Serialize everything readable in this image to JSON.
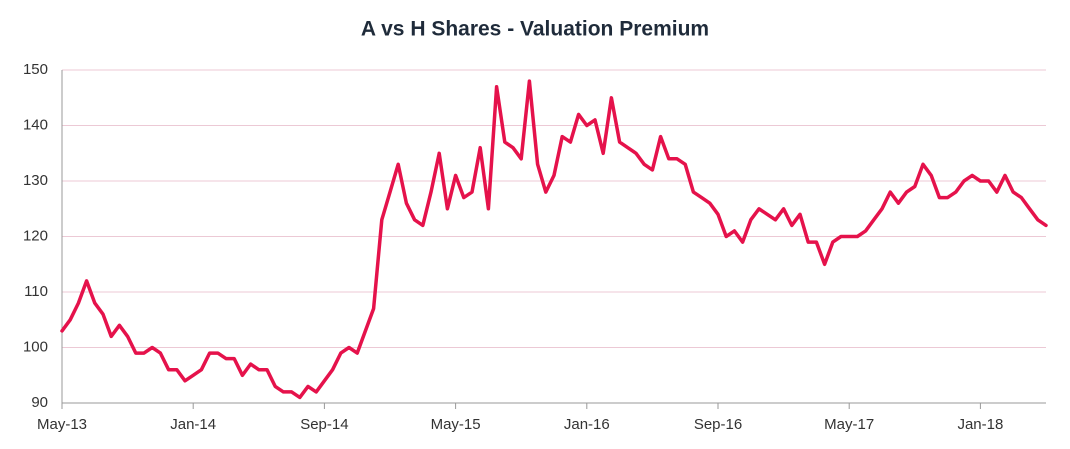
{
  "chart_data": {
    "type": "line",
    "title": "A vs H Shares - Valuation Premium",
    "categories": [
      "May-13",
      null,
      null,
      null,
      null,
      null,
      null,
      null,
      null,
      null,
      null,
      null,
      null,
      null,
      null,
      null,
      "Jan-14",
      null,
      null,
      null,
      null,
      null,
      null,
      null,
      null,
      null,
      null,
      null,
      null,
      null,
      null,
      null,
      "Sep-14",
      null,
      null,
      null,
      null,
      null,
      null,
      null,
      null,
      null,
      null,
      null,
      null,
      null,
      null,
      null,
      "May-15",
      null,
      null,
      null,
      null,
      null,
      null,
      null,
      null,
      null,
      null,
      null,
      null,
      null,
      null,
      null,
      "Jan-16",
      null,
      null,
      null,
      null,
      null,
      null,
      null,
      null,
      null,
      null,
      null,
      null,
      null,
      null,
      null,
      "Sep-16",
      null,
      null,
      null,
      null,
      null,
      null,
      null,
      null,
      null,
      null,
      null,
      null,
      null,
      null,
      null,
      "May-17",
      null,
      null,
      null,
      null,
      null,
      null,
      null,
      null,
      null,
      null,
      null,
      null,
      null,
      null,
      null,
      "Jan-18",
      null,
      null,
      null,
      null,
      null,
      null,
      null,
      null
    ],
    "series": [
      {
        "color": "#e5124b",
        "values": [
          103,
          105,
          108,
          112,
          108,
          106,
          102,
          104,
          102,
          99,
          99,
          100,
          99,
          96,
          96,
          94,
          95,
          96,
          99,
          99,
          98,
          98,
          95,
          97,
          96,
          96,
          93,
          92,
          92,
          91,
          93,
          92,
          94,
          96,
          99,
          100,
          99,
          103,
          107,
          123,
          128,
          133,
          126,
          123,
          122,
          128,
          135,
          125,
          131,
          127,
          128,
          136,
          125,
          147,
          137,
          136,
          134,
          148,
          133,
          128,
          131,
          138,
          137,
          142,
          140,
          141,
          135,
          145,
          137,
          136,
          135,
          133,
          132,
          138,
          134,
          134,
          133,
          128,
          127,
          126,
          124,
          120,
          121,
          119,
          123,
          125,
          124,
          123,
          125,
          122,
          124,
          119,
          119,
          115,
          119,
          120,
          120,
          120,
          121,
          123,
          125,
          128,
          126,
          128,
          129,
          133,
          131,
          127,
          127,
          128,
          130,
          131,
          130,
          130,
          128,
          131,
          128,
          127,
          125,
          123,
          122
        ]
      }
    ],
    "ylim": [
      90,
      150
    ],
    "yticks": [
      90,
      100,
      110,
      120,
      130,
      140,
      150
    ],
    "grid": true
  }
}
